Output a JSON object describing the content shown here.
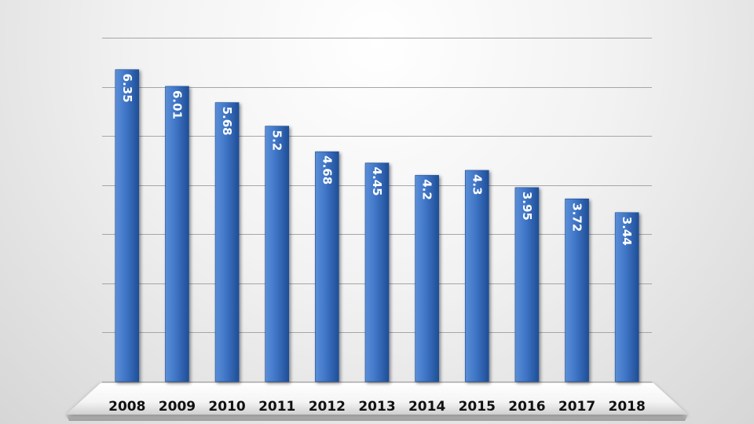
{
  "chart_data": {
    "type": "bar",
    "title": "",
    "xlabel": "",
    "ylabel": "",
    "categories": [
      "2008",
      "2009",
      "2010",
      "2011",
      "2012",
      "2013",
      "2014",
      "2015",
      "2016",
      "2017",
      "2018"
    ],
    "values": [
      6.35,
      6.01,
      5.68,
      5.2,
      4.68,
      4.45,
      4.2,
      4.3,
      3.95,
      3.72,
      3.44
    ],
    "data_labels": [
      "6.35",
      "6.01",
      "5.68",
      "5.2",
      "4.68",
      "4.45",
      "4.2",
      "4.3",
      "3.95",
      "3.72",
      "3.44"
    ],
    "ylim": [
      0,
      7
    ],
    "y_tick_step": 1,
    "grid": true,
    "legend": "none",
    "colors": {
      "bar": "#3f75c6",
      "bar_light": "#5b8fd8",
      "bar_dark": "#1f4e96",
      "gridline": "#a6a6a6",
      "axis_text": "#111111",
      "data_label_text": "#ffffff"
    }
  }
}
